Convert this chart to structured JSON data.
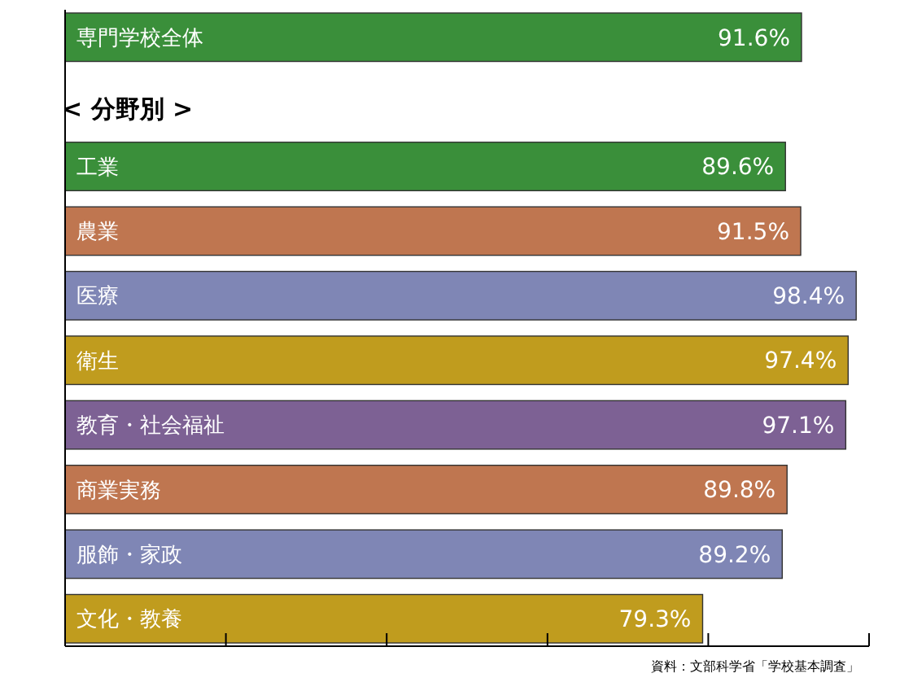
{
  "chart_data": {
    "type": "bar",
    "orientation": "horizontal",
    "categories": [
      "専門学校全体",
      null,
      "工業",
      "農業",
      "医療",
      "衛生",
      "教育・社会福祉",
      "商業実務",
      "服飾・家政",
      "文化・教養"
    ],
    "values": [
      91.6,
      null,
      89.6,
      91.5,
      98.4,
      97.4,
      97.1,
      89.8,
      89.2,
      79.3
    ],
    "value_labels": [
      "91.6%",
      null,
      "89.6%",
      "91.5%",
      "98.4%",
      "97.4%",
      "97.1%",
      "89.8%",
      "89.2%",
      "79.3%"
    ],
    "colors": [
      "#3a8f3a",
      null,
      "#3a8f3a",
      "#bf7650",
      "#7f86b5",
      "#c09c1e",
      "#7d6194",
      "#bf7650",
      "#7f86b5",
      "#c09c1e"
    ],
    "xlim": [
      0,
      100
    ],
    "xticks": [
      {
        "value": 0,
        "label": null
      },
      {
        "value": 20,
        "label": null
      },
      {
        "value": 40,
        "label": null
      },
      {
        "value": 60,
        "label": null
      },
      {
        "value": 80,
        "label": null
      },
      {
        "value": 100,
        "label": null
      }
    ],
    "grid": false,
    "annotations": [
      "< 分野別 >",
      "資料：文部科学省「学校基本調査」"
    ]
  }
}
